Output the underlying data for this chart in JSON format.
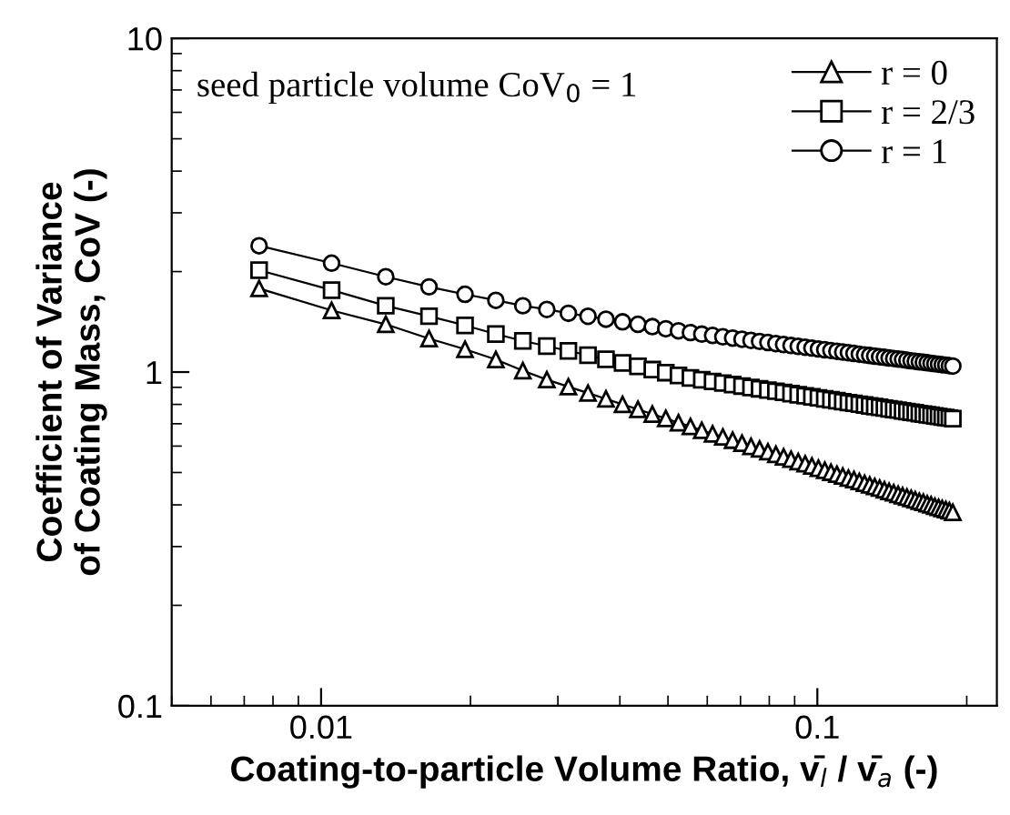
{
  "chart_data": {
    "type": "line",
    "xlabel": "Coating-to-particle Volume Ratio, v̄$_{l}$ / v̄$_{a}$ (-)",
    "ylabel": "Coefficient of Variance\nof Coating Mass, CoV (-)",
    "annotations": [
      "seed particle volume CoV$_{0}$ = 1"
    ],
    "log": "xy",
    "xlim": [
      0.005,
      0.23
    ],
    "ylim": [
      0.1,
      10
    ],
    "xticks": [
      0.01,
      0.1
    ],
    "yticks": [
      0.1,
      1,
      10
    ],
    "grid": false,
    "legend": "top right",
    "line_style": "solid",
    "x": [
      0.0075,
      0.0105,
      0.0135,
      0.0165,
      0.0195,
      0.0225,
      0.0255,
      0.0285,
      0.0315,
      0.0345,
      0.0375,
      0.0405,
      0.0435,
      0.0465,
      0.0495,
      0.0525,
      0.0555,
      0.0585,
      0.0615,
      0.0645,
      0.0675,
      0.0705,
      0.0735,
      0.0765,
      0.0795,
      0.0825,
      0.0855,
      0.0885,
      0.0915,
      0.0945,
      0.0975,
      0.1005,
      0.1035,
      0.1065,
      0.1095,
      0.1125,
      0.1155,
      0.1185,
      0.1215,
      0.1245,
      0.1275,
      0.1305,
      0.1335,
      0.1365,
      0.1395,
      0.1425,
      0.1455,
      0.1485,
      0.1515,
      0.1545,
      0.1575,
      0.1605,
      0.1635,
      0.1665,
      0.1695,
      0.1725,
      0.1755,
      0.1785,
      0.1815,
      0.1845,
      0.1875
    ],
    "series": [
      {
        "name": "r = 0",
        "color": "#000000",
        "marker": "triangle",
        "values": [
          1.78,
          1.53,
          1.39,
          1.26,
          1.17,
          1.09,
          1.01,
          0.949,
          0.904,
          0.865,
          0.831,
          0.8,
          0.773,
          0.748,
          0.726,
          0.705,
          0.687,
          0.669,
          0.653,
          0.639,
          0.625,
          0.612,
          0.599,
          0.588,
          0.577,
          0.567,
          0.557,
          0.548,
          0.539,
          0.531,
          0.523,
          0.515,
          0.508,
          0.501,
          0.494,
          0.488,
          0.481,
          0.476,
          0.47,
          0.464,
          0.459,
          0.454,
          0.449,
          0.444,
          0.439,
          0.435,
          0.43,
          0.426,
          0.422,
          0.418,
          0.414,
          0.41,
          0.407,
          0.403,
          0.4,
          0.396,
          0.393,
          0.39,
          0.387,
          0.384,
          0.38
        ]
      },
      {
        "name": "r = 2/3",
        "color": "#000000",
        "marker": "square",
        "values": [
          2.02,
          1.76,
          1.58,
          1.47,
          1.38,
          1.3,
          1.24,
          1.196,
          1.157,
          1.123,
          1.092,
          1.065,
          1.04,
          1.017,
          0.996,
          0.977,
          0.96,
          0.948,
          0.937,
          0.927,
          0.917,
          0.908,
          0.899,
          0.891,
          0.883,
          0.876,
          0.869,
          0.862,
          0.855,
          0.849,
          0.843,
          0.837,
          0.831,
          0.826,
          0.821,
          0.815,
          0.81,
          0.806,
          0.801,
          0.797,
          0.792,
          0.788,
          0.784,
          0.78,
          0.776,
          0.772,
          0.769,
          0.765,
          0.761,
          0.758,
          0.755,
          0.751,
          0.748,
          0.745,
          0.742,
          0.739,
          0.736,
          0.733,
          0.731,
          0.728,
          0.725
        ]
      },
      {
        "name": "r = 1",
        "color": "#000000",
        "marker": "circle",
        "values": [
          2.39,
          2.12,
          1.93,
          1.8,
          1.71,
          1.64,
          1.58,
          1.54,
          1.5,
          1.469,
          1.44,
          1.414,
          1.39,
          1.368,
          1.348,
          1.329,
          1.313,
          1.299,
          1.287,
          1.275,
          1.264,
          1.254,
          1.244,
          1.235,
          1.226,
          1.217,
          1.209,
          1.201,
          1.194,
          1.187,
          1.18,
          1.173,
          1.166,
          1.16,
          1.154,
          1.148,
          1.143,
          1.137,
          1.131,
          1.126,
          1.121,
          1.116,
          1.111,
          1.107,
          1.102,
          1.098,
          1.094,
          1.09,
          1.085,
          1.081,
          1.077,
          1.073,
          1.07,
          1.066,
          1.062,
          1.059,
          1.055,
          1.052,
          1.049,
          1.045,
          1.042
        ]
      }
    ]
  }
}
